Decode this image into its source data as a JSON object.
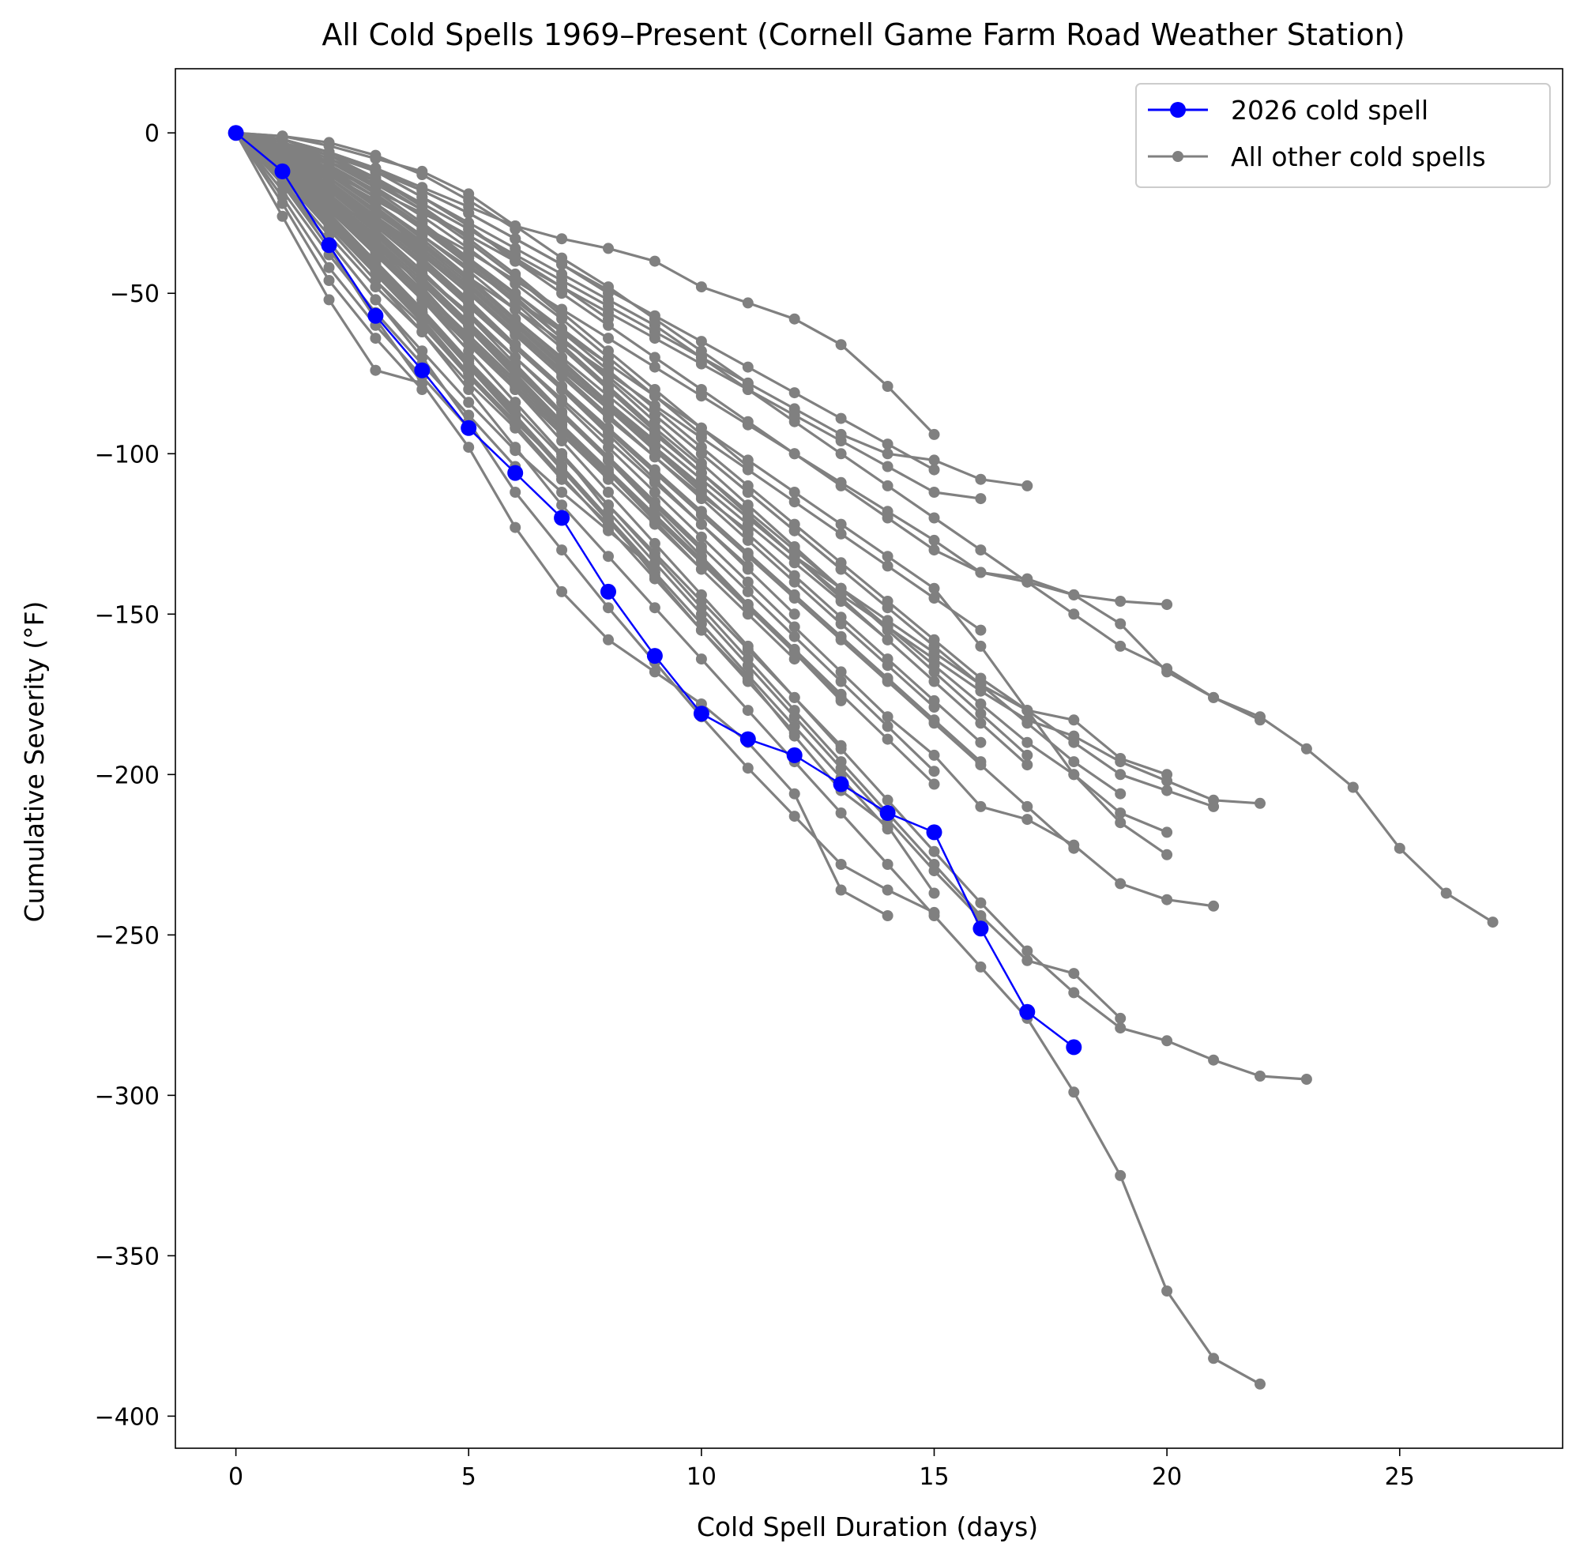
{
  "chart_data": {
    "type": "line",
    "title": "All Cold Spells 1969–Present (Cornell Game Farm Road Weather Station)",
    "xlabel": "Cold Spell Duration (days)",
    "ylabel": "Cumulative Severity (°F)",
    "xlim": [
      -1.3,
      28.5
    ],
    "ylim": [
      -410,
      20
    ],
    "xticks": [
      0,
      5,
      10,
      15,
      20,
      25
    ],
    "yticks": [
      0,
      -50,
      -100,
      -150,
      -200,
      -250,
      -300,
      -350,
      -400
    ],
    "xtick_labels": [
      "0",
      "5",
      "10",
      "15",
      "20",
      "25"
    ],
    "ytick_labels": [
      "0",
      "−50",
      "−100",
      "−150",
      "−200",
      "−250",
      "−300",
      "−350",
      "−400"
    ],
    "grid": false,
    "legend": {
      "position": "top-right",
      "entries": [
        {
          "label": "2026 cold spell",
          "color": "#0000ff"
        },
        {
          "label": "All other cold spells",
          "color": "#808080"
        }
      ]
    },
    "highlight": {
      "name": "2026 cold spell",
      "color": "#0000ff",
      "x": [
        0,
        1,
        2,
        3,
        4,
        5,
        6,
        7,
        8,
        9,
        10,
        11,
        12,
        13,
        14,
        15,
        16,
        17,
        18
      ],
      "y": [
        0,
        -12,
        -35,
        -57,
        -74,
        -92,
        -106,
        -120,
        -143,
        -163,
        -181,
        -189,
        -194,
        -203,
        -212,
        -218,
        -248,
        -274,
        -285
      ]
    },
    "others_color": "#808080",
    "others": [
      [
        0,
        -8,
        -20,
        -30,
        -45,
        -60,
        -75,
        -90
      ],
      [
        0,
        -5,
        -14,
        -24,
        -36,
        -48,
        -61,
        -74,
        -86,
        -98
      ],
      [
        0,
        -3,
        -8,
        -15,
        -24,
        -34,
        -45,
        -57
      ],
      [
        0,
        -10,
        -24,
        -38,
        -52,
        -66
      ],
      [
        0,
        -7,
        -18,
        -29,
        -41,
        -54,
        -67,
        -80,
        -93
      ],
      [
        0,
        -12,
        -27,
        -43,
        -58,
        -75,
        -90,
        -104
      ],
      [
        0,
        -4,
        -11,
        -20,
        -30,
        -41,
        -53,
        -66,
        -79,
        -92,
        -104
      ],
      [
        0,
        -9,
        -22,
        -35,
        -47,
        -60
      ],
      [
        0,
        -6,
        -15,
        -26,
        -38,
        -50,
        -63,
        -76,
        -89,
        -101,
        -113,
        -124
      ],
      [
        0,
        -11,
        -25,
        -40,
        -55,
        -71,
        -87
      ],
      [
        0,
        -2,
        -6,
        -12,
        -20,
        -29,
        -40
      ],
      [
        0,
        -14,
        -30,
        -46,
        -60,
        -76,
        -91,
        -108
      ],
      [
        0,
        -5,
        -13,
        -23,
        -34,
        -46,
        -59,
        -72,
        -85,
        -98,
        -111
      ],
      [
        0,
        -8,
        -19,
        -31,
        -44,
        -57,
        -70,
        -83,
        -96,
        -109,
        -122,
        -135
      ],
      [
        0,
        -13,
        -28,
        -44,
        -59
      ],
      [
        0,
        -3,
        -10,
        -19,
        -29,
        -40,
        -52,
        -64,
        -76,
        -88,
        -100,
        -112,
        -124,
        -136
      ],
      [
        0,
        -7,
        -17,
        -28,
        -40,
        -53,
        -66
      ],
      [
        0,
        -10,
        -23,
        -37,
        -51,
        -65,
        -79,
        -93,
        -107
      ],
      [
        0,
        -4,
        -12,
        -22,
        -33,
        -45,
        -58,
        -71,
        -84,
        -97
      ],
      [
        0,
        -15,
        -32,
        -48,
        -62,
        -78,
        -92,
        -108,
        -122
      ],
      [
        0,
        -6,
        -16,
        -27,
        -39,
        -52,
        -66,
        -80,
        -94,
        -108,
        -122,
        -136,
        -150
      ],
      [
        0,
        -9,
        -21,
        -34,
        -47,
        -61,
        -76,
        -91,
        -106,
        -121,
        -136
      ],
      [
        0,
        -1,
        -3,
        -7,
        -13,
        -21,
        -30
      ],
      [
        0,
        -12,
        -26,
        -41,
        -56,
        -72,
        -88,
        -104,
        -120,
        -136
      ],
      [
        0,
        -5,
        -15,
        -26,
        -38,
        -50,
        -62,
        -74,
        -86,
        -98,
        -110,
        -122,
        -134,
        -146,
        -158
      ],
      [
        0,
        -8,
        -18,
        -30,
        -43,
        -57,
        -72,
        -87,
        -102,
        -117,
        -132,
        -147,
        -162,
        -177
      ],
      [
        0,
        -11,
        -24,
        -38,
        -52,
        -66,
        -80,
        -94,
        -108,
        -122,
        -136,
        -150,
        -164
      ],
      [
        0,
        -3,
        -9,
        -17,
        -26,
        -36,
        -47,
        -58,
        -70,
        -82,
        -94
      ],
      [
        0,
        -7,
        -16,
        -26,
        -37,
        -49,
        -62,
        -75,
        -88,
        -101,
        -114,
        -127,
        -140,
        -153,
        -166,
        -179
      ],
      [
        0,
        -14,
        -29,
        -44,
        -59,
        -75,
        -91,
        -107,
        -123,
        -139,
        -155,
        -171,
        -187
      ],
      [
        0,
        -6,
        -14,
        -24,
        -35,
        -47,
        -60,
        -73,
        -86,
        -99,
        -112,
        -125,
        -138,
        -151,
        -164,
        -177,
        -190
      ],
      [
        0,
        -10,
        -22,
        -35,
        -49,
        -63,
        -77,
        -91,
        -105,
        -119,
        -133,
        -147,
        -161,
        -175,
        -189,
        -203
      ],
      [
        0,
        -4,
        -10,
        -18,
        -28,
        -39,
        -51,
        -64,
        -77,
        -90,
        -103,
        -116,
        -129,
        -142,
        -155,
        -168,
        -181,
        -194
      ],
      [
        0,
        -8,
        -18,
        -29,
        -41,
        -54,
        -67,
        -80,
        -93,
        -106,
        -119,
        -132,
        -145,
        -158,
        -171,
        -184,
        -197,
        -210,
        -223
      ],
      [
        0,
        -12,
        -26,
        -41,
        -56,
        -71,
        -86,
        -101,
        -116,
        -131,
        -146,
        -161,
        -176,
        -191
      ],
      [
        0,
        -5,
        -13,
        -22,
        -32,
        -43,
        -55,
        -67,
        -80,
        -93,
        -106,
        -119,
        -132,
        -145,
        -158,
        -171,
        -184,
        -197
      ],
      [
        0,
        -9,
        -20,
        -32,
        -45,
        -59,
        -73,
        -87,
        -101,
        -115,
        -129,
        -143,
        -157,
        -171,
        -185,
        -199
      ],
      [
        0,
        -2,
        -7,
        -14,
        -23,
        -33,
        -44,
        -56,
        -68,
        -80,
        -92,
        -104
      ],
      [
        0,
        -13,
        -27,
        -42,
        -57,
        -73,
        -89,
        -105,
        -121,
        -137,
        -153,
        -169,
        -185,
        -201,
        -217
      ],
      [
        0,
        -7,
        -17,
        -28,
        -40,
        -53,
        -66,
        -79,
        -92,
        -105,
        -118,
        -131,
        -144,
        -157,
        -170,
        -183,
        -196
      ],
      [
        0,
        -1,
        -4,
        -8,
        -12,
        -19,
        -29,
        -39,
        -48,
        -58,
        -68,
        -78
      ],
      [
        0,
        -2,
        -6,
        -11,
        -18,
        -25,
        -33,
        -41,
        -49,
        -57,
        -65,
        -73,
        -81,
        -89,
        -97,
        -105
      ],
      [
        0,
        -6,
        -14,
        -25,
        -35,
        -45,
        -55,
        -65,
        -75,
        -85,
        -95,
        -105,
        -115,
        -125,
        -135,
        -145,
        -155
      ],
      [
        0,
        -16,
        -34,
        -52,
        -68,
        -84,
        -99,
        -112,
        -124,
        -136
      ],
      [
        0,
        -18,
        -38,
        -56,
        -72,
        -88,
        -104
      ],
      [
        0,
        -20,
        -42,
        -60,
        -76,
        -92
      ],
      [
        0,
        -22,
        -46,
        -64,
        -80
      ],
      [
        0,
        -26,
        -52,
        -74,
        -78
      ],
      [
        0,
        -4,
        -9,
        -15,
        -22,
        -30,
        -39,
        -48,
        -58
      ],
      [
        0,
        -10,
        -21,
        -33,
        -46,
        -60,
        -74,
        -88,
        -102,
        -116,
        -130
      ],
      [
        0,
        -8,
        -17,
        -27,
        -38,
        -50,
        -62,
        -74,
        -86,
        -98,
        -110
      ],
      [
        0,
        -3,
        -7,
        -12,
        -18,
        -25,
        -33,
        -41,
        -50
      ],
      [
        0,
        -11,
        -23,
        -36,
        -50,
        -64,
        -78,
        -92,
        -106,
        -120,
        -134,
        -148,
        -162,
        -176
      ],
      [
        0,
        -5,
        -12,
        -20,
        -29,
        -39,
        -50,
        -61,
        -72
      ],
      [
        0,
        -12,
        -26,
        -40,
        -56,
        -72,
        -88,
        -104,
        -120,
        -138,
        -155,
        -170,
        -188,
        -205,
        -216,
        -237
      ],
      [
        0,
        -10,
        -22,
        -36,
        -52,
        -68,
        -84,
        -100,
        -118,
        -134,
        -150,
        -166,
        -182,
        -198,
        -214,
        -230,
        -245
      ],
      [
        0,
        -14,
        -30,
        -46,
        -62,
        -80,
        -98,
        -116,
        -132,
        -148,
        -164,
        -180,
        -196,
        -212,
        -228,
        -244,
        -260,
        -276,
        -299,
        -325,
        -361,
        -382,
        -390
      ],
      [
        0,
        -9,
        -20,
        -33,
        -48,
        -64,
        -80,
        -96,
        -112,
        -128,
        -144,
        -160,
        -176,
        -192,
        -208,
        -224,
        -240,
        -255,
        -268,
        -279,
        -283,
        -289,
        -294,
        -295
      ],
      [
        0,
        -10,
        -22,
        -36,
        -52,
        -68,
        -84,
        -100,
        -116,
        -132,
        -148,
        -164,
        -180,
        -196,
        -212,
        -228,
        -244,
        -258,
        -262,
        -276
      ],
      [
        0,
        -15,
        -34,
        -52,
        -70,
        -90,
        -112,
        -130,
        -148,
        -165,
        -182,
        -198,
        -213,
        -228,
        -236,
        -243
      ],
      [
        0,
        -16,
        -36,
        -58,
        -78,
        -98,
        -123,
        -143,
        -158,
        -168,
        -178,
        -190,
        -206,
        -236,
        -244
      ],
      [
        0,
        -4,
        -10,
        -18,
        -28,
        -40,
        -52,
        -64,
        -76,
        -88,
        -100,
        -112,
        -124,
        -136,
        -148,
        -160,
        -172,
        -184,
        -196,
        -206
      ],
      [
        0,
        -5,
        -12,
        -20,
        -30,
        -40,
        -50,
        -62,
        -74,
        -86,
        -98,
        -110,
        -122,
        -134,
        -146,
        -158,
        -170,
        -180,
        -190,
        -200,
        -205,
        -210
      ],
      [
        0,
        -6,
        -14,
        -24,
        -34,
        -46,
        -58,
        -70,
        -82,
        -94,
        -106,
        -118,
        -130,
        -142,
        -154,
        -166,
        -178,
        -190,
        -200,
        -212,
        -218
      ],
      [
        0,
        -2,
        -6,
        -12,
        -20,
        -28,
        -36,
        -44,
        -52,
        -60,
        -70,
        -80,
        -90,
        -100,
        -110,
        -120,
        -130,
        -140,
        -150,
        -160,
        -167,
        -176,
        -182,
        -192,
        -204,
        -223,
        -237,
        -246
      ],
      [
        0,
        -2,
        -6,
        -11,
        -17,
        -23,
        -29,
        -33,
        -36,
        -40,
        -48,
        -53,
        -58,
        -66,
        -79,
        -94
      ],
      [
        0,
        -3,
        -8,
        -14,
        -22,
        -30,
        -38,
        -46,
        -54,
        -62,
        -70,
        -78,
        -86,
        -94,
        -100,
        -102,
        -108,
        -110
      ],
      [
        0,
        -3,
        -9,
        -16,
        -24,
        -32,
        -40,
        -48,
        -56,
        -64,
        -72,
        -80,
        -88,
        -96,
        -104,
        -112,
        -114
      ],
      [
        0,
        -5,
        -11,
        -18,
        -25,
        -32,
        -40,
        -50,
        -60,
        -70,
        -80,
        -90,
        -100,
        -110,
        -120,
        -130,
        -137,
        -139,
        -144,
        -146,
        -147
      ],
      [
        0,
        -6,
        -13,
        -21,
        -29,
        -37,
        -46,
        -55,
        -64,
        -73,
        -82,
        -91,
        -100,
        -109,
        -118,
        -127,
        -137,
        -140,
        -144,
        -153,
        -168,
        -176,
        -183
      ],
      [
        0,
        -8,
        -18,
        -28,
        -38,
        -48,
        -60,
        -72,
        -84,
        -96,
        -108,
        -120,
        -132,
        -142,
        -152,
        -162,
        -172,
        -180,
        -183,
        -195,
        -200
      ],
      [
        0,
        -7,
        -16,
        -26,
        -36,
        -48,
        -60,
        -72,
        -84,
        -96,
        -108,
        -120,
        -132,
        -144,
        -154,
        -164,
        -174,
        -183,
        -188,
        -196,
        -202,
        -208,
        -209
      ],
      [
        0,
        -9,
        -20,
        -32,
        -44,
        -56,
        -70,
        -84,
        -98,
        -112,
        -126,
        -140,
        -154,
        -168,
        -182,
        -194,
        -210,
        -214,
        -222,
        -234,
        -239,
        -241
      ],
      [
        0,
        -5,
        -13,
        -22,
        -32,
        -42,
        -52,
        -62,
        -72,
        -82,
        -92,
        -102,
        -112,
        -122,
        -132,
        -142,
        -160,
        -180,
        -200,
        -215,
        -225
      ]
    ]
  }
}
